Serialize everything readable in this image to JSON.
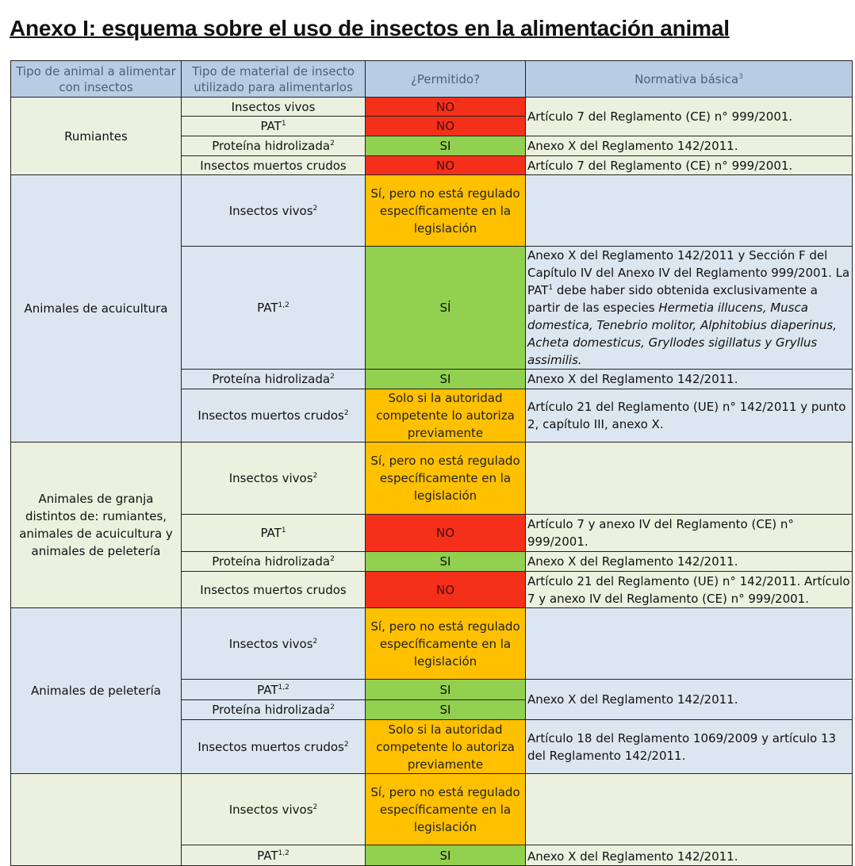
{
  "title": "Anexo I: esquema sobre el uso de insectos en la alimentación animal",
  "headers": {
    "animal": "Tipo de animal a alimentar con insectos",
    "material": "Tipo de material de insecto utilizado para alimentarlos",
    "permitted": "¿Permitido?",
    "normativa": "Normativa básica",
    "normativa_sup": "3"
  },
  "groups": [
    {
      "animal": "Rumiantes",
      "rows": [
        {
          "material": "Insectos vivos",
          "sup": "",
          "permitted": "NO",
          "status": "NO",
          "norm": "Artículo 7 del Reglamento (CE) n° 999/2001."
        },
        {
          "material": "PAT",
          "sup": "1",
          "permitted": "NO",
          "status": "NO"
        },
        {
          "material": "Proteína hidrolizada",
          "sup": "2",
          "permitted": "SI",
          "status": "SI",
          "norm": "Anexo X del Reglamento 142/2011."
        },
        {
          "material": "Insectos muertos crudos",
          "sup": "",
          "permitted": "NO",
          "status": "NO",
          "norm": "Artículo 7 del Reglamento (CE) n° 999/2001."
        }
      ]
    },
    {
      "animal": "Animales de acuicultura",
      "rows": [
        {
          "material": "Insectos vivos",
          "sup": "2",
          "permitted": "Sí, pero no está regulado específicamente en la legislación",
          "status": "COND",
          "norm": ""
        },
        {
          "material": "PAT",
          "sup": "1,2",
          "permitted": "SÍ",
          "status": "SI",
          "norm_parts": {
            "a": "Anexo X del Reglamento 142/2011 y Sección F del Capítulo IV del Anexo IV del Reglamento 999/2001. La PAT",
            "a_sup": "1",
            "b": " debe haber sido obtenida exclusivamente a partir de las especies ",
            "species": "Hermetia illucens, Musca domestica, Tenebrio molitor, Alphitobius diaperinus, Acheta domesticus, Gryllodes sigillatus y Gryllus assimilis."
          }
        },
        {
          "material": "Proteína hidrolizada",
          "sup": "2",
          "permitted": "SI",
          "status": "SI",
          "norm": "Anexo X del Reglamento 142/2011."
        },
        {
          "material": "Insectos muertos crudos",
          "sup": "2",
          "permitted": "Solo si la autoridad competente lo autoriza previamente",
          "status": "COND",
          "norm": "Artículo 21 del Reglamento (UE) n° 142/2011 y punto 2, capítulo III, anexo X."
        }
      ]
    },
    {
      "animal": "Animales de granja distintos de: rumiantes, animales de acuicultura y animales de peletería",
      "rows": [
        {
          "material": "Insectos vivos",
          "sup": "2",
          "permitted": "Sí, pero no está regulado específicamente en la legislación",
          "status": "COND",
          "norm": ""
        },
        {
          "material": "PAT",
          "sup": "1",
          "permitted": "NO",
          "status": "NO",
          "norm": "Artículo 7 y anexo IV del Reglamento (CE) n° 999/2001."
        },
        {
          "material": "Proteína hidrolizada",
          "sup": "2",
          "permitted": "SI",
          "status": "SI",
          "norm": "Anexo X del Reglamento 142/2011."
        },
        {
          "material": "Insectos muertos crudos",
          "sup": "",
          "permitted": "NO",
          "status": "NO",
          "norm": "Artículo 21 del Reglamento (UE) n° 142/2011. Artículo 7 y anexo IV del Reglamento (CE) n° 999/2001."
        }
      ]
    },
    {
      "animal": "Animales de peletería",
      "rows": [
        {
          "material": "Insectos vivos",
          "sup": "2",
          "permitted": "Sí, pero no está regulado específicamente en la legislación",
          "status": "COND",
          "norm": ""
        },
        {
          "material": "PAT",
          "sup": "1,2",
          "permitted": "SI",
          "status": "SI",
          "norm": "Anexo X del Reglamento 142/2011."
        },
        {
          "material": "Proteína hidrolizada",
          "sup": "2",
          "permitted": "SI",
          "status": "SI"
        },
        {
          "material": "Insectos muertos crudos",
          "sup": "2",
          "permitted": "Solo si la autoridad competente lo autoriza previamente",
          "status": "COND",
          "norm": "Artículo 18 del Reglamento 1069/2009 y artículo 13 del Reglamento 142/2011."
        }
      ]
    },
    {
      "animal": "",
      "rows": [
        {
          "material": "Insectos vivos",
          "sup": "2",
          "permitted": "Sí, pero no está regulado específicamente en la legislación",
          "status": "COND",
          "norm": ""
        },
        {
          "material": "PAT",
          "sup": "1,2",
          "permitted": "SI",
          "status": "SI",
          "norm": "Anexo X del Reglamento 142/2011."
        }
      ]
    }
  ],
  "colors": {
    "header": "#b8cce4",
    "group_green": "#ebf1de",
    "group_blue": "#dce6f1",
    "no": "#f4301a",
    "si": "#92d050",
    "conditional": "#ffc000"
  }
}
